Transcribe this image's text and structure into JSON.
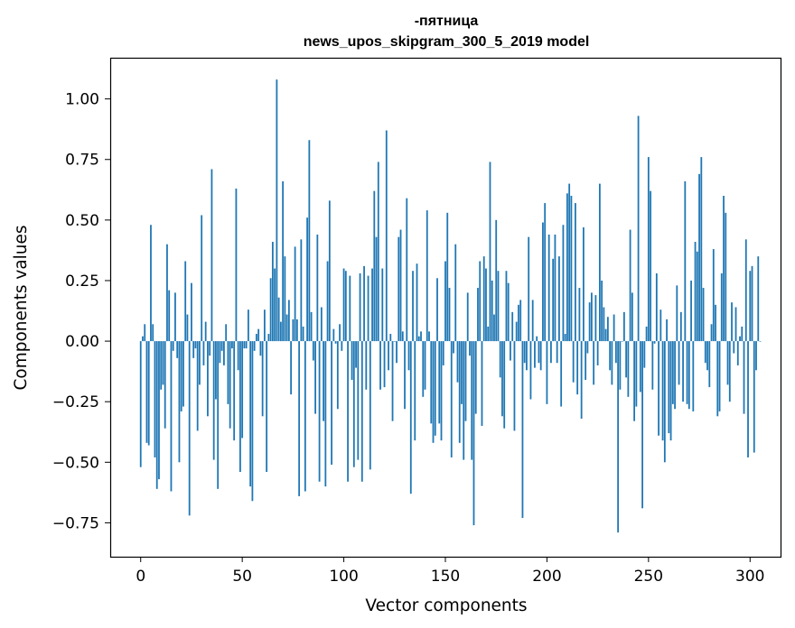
{
  "chart_data": {
    "type": "bar",
    "title": "-пятница",
    "subtitle": "news_upos_skipgram_300_5_2019 model",
    "xlabel": "Vector components",
    "ylabel": "Components values",
    "xlim": [
      -15,
      315
    ],
    "ylim": [
      -0.89,
      1.17
    ],
    "xticks": [
      0,
      50,
      100,
      150,
      200,
      250,
      300
    ],
    "xtick_labels": [
      "0",
      "50",
      "100",
      "150",
      "200",
      "250",
      "300"
    ],
    "yticks": [
      -0.75,
      -0.5,
      -0.25,
      0.0,
      0.25,
      0.5,
      0.75,
      1.0
    ],
    "ytick_labels": [
      "−0.75",
      "−0.50",
      "−0.25",
      "0.00",
      "0.25",
      "0.50",
      "0.75",
      "1.00"
    ],
    "bar_color": "#1f77b4",
    "values": [
      -0.52,
      0.02,
      0.07,
      -0.42,
      -0.43,
      0.48,
      0.07,
      -0.48,
      -0.61,
      -0.57,
      -0.2,
      -0.18,
      -0.36,
      0.4,
      0.21,
      -0.62,
      -0.04,
      0.2,
      -0.07,
      -0.5,
      -0.29,
      -0.27,
      0.33,
      0.11,
      -0.72,
      0.24,
      -0.07,
      -0.03,
      -0.37,
      -0.18,
      0.52,
      -0.1,
      0.08,
      -0.31,
      -0.06,
      0.71,
      -0.49,
      -0.24,
      -0.61,
      -0.09,
      -0.04,
      -0.1,
      0.07,
      -0.26,
      -0.36,
      -0.03,
      -0.41,
      0.63,
      -0.12,
      -0.54,
      -0.4,
      -0.03,
      -0.03,
      0.13,
      -0.6,
      -0.66,
      -0.04,
      0.03,
      0.05,
      -0.06,
      -0.31,
      0.13,
      -0.54,
      0.03,
      0.26,
      0.41,
      0.3,
      1.08,
      0.18,
      0.08,
      0.66,
      0.35,
      0.11,
      0.17,
      -0.22,
      0.09,
      0.39,
      0.09,
      -0.64,
      0.42,
      0.06,
      -0.62,
      0.51,
      0.83,
      0.12,
      -0.08,
      -0.3,
      0.44,
      -0.58,
      0.14,
      -0.33,
      -0.6,
      0.33,
      0.58,
      -0.51,
      0.05,
      -0.01,
      -0.28,
      0.07,
      -0.04,
      0.3,
      0.29,
      -0.58,
      0.27,
      -0.16,
      -0.52,
      -0.11,
      -0.49,
      0.28,
      -0.58,
      0.31,
      -0.2,
      0.27,
      -0.53,
      0.3,
      0.62,
      0.43,
      0.74,
      -0.2,
      0.3,
      -0.19,
      0.87,
      -0.12,
      0.03,
      -0.33,
      0.0,
      -0.09,
      0.43,
      0.46,
      0.04,
      -0.28,
      0.59,
      -0.12,
      -0.63,
      0.29,
      -0.41,
      0.32,
      0.02,
      0.04,
      -0.23,
      -0.2,
      0.54,
      0.04,
      -0.34,
      -0.42,
      -0.39,
      0.26,
      -0.34,
      -0.41,
      -0.1,
      0.33,
      0.53,
      0.22,
      -0.48,
      -0.05,
      0.4,
      -0.17,
      -0.42,
      -0.26,
      -0.49,
      -0.33,
      0.2,
      -0.06,
      -0.49,
      -0.76,
      -0.3,
      0.22,
      0.33,
      -0.35,
      0.35,
      0.3,
      0.06,
      0.74,
      0.25,
      0.11,
      0.5,
      0.29,
      -0.15,
      -0.31,
      -0.36,
      0.29,
      0.24,
      -0.08,
      0.12,
      -0.37,
      0.08,
      0.15,
      0.17,
      -0.73,
      -0.09,
      -0.12,
      0.43,
      -0.24,
      0.17,
      -0.11,
      0.02,
      -0.09,
      -0.12,
      0.49,
      0.57,
      -0.26,
      0.44,
      -0.09,
      0.34,
      0.44,
      -0.09,
      0.35,
      -0.27,
      0.48,
      0.03,
      0.61,
      0.65,
      0.6,
      -0.17,
      0.57,
      -0.22,
      0.22,
      -0.32,
      0.47,
      -0.16,
      -0.05,
      0.16,
      0.2,
      -0.18,
      0.19,
      -0.1,
      0.65,
      0.25,
      0.14,
      0.05,
      0.1,
      -0.12,
      -0.18,
      0.11,
      -0.09,
      -0.79,
      -0.2,
      0.0,
      0.12,
      -0.15,
      -0.23,
      0.46,
      0.2,
      -0.33,
      -0.27,
      0.93,
      -0.21,
      -0.69,
      -0.11,
      0.06,
      0.76,
      0.62,
      -0.2,
      -0.01,
      0.28,
      -0.39,
      0.13,
      -0.41,
      -0.5,
      0.09,
      -0.38,
      -0.41,
      -0.26,
      -0.28,
      0.23,
      -0.18,
      0.12,
      -0.25,
      0.66,
      -0.26,
      -0.28,
      0.25,
      -0.29,
      0.41,
      0.37,
      0.69,
      0.76,
      0.22,
      -0.09,
      -0.12,
      -0.19,
      0.07,
      0.38,
      0.15,
      -0.31,
      -0.29,
      0.28,
      0.6,
      0.53,
      -0.18,
      -0.25,
      0.16,
      -0.05,
      0.14,
      -0.1,
      0.02,
      0.06,
      -0.3,
      0.42,
      -0.48,
      0.29,
      0.31,
      -0.46,
      -0.12,
      0.35,
      0.0
    ]
  }
}
